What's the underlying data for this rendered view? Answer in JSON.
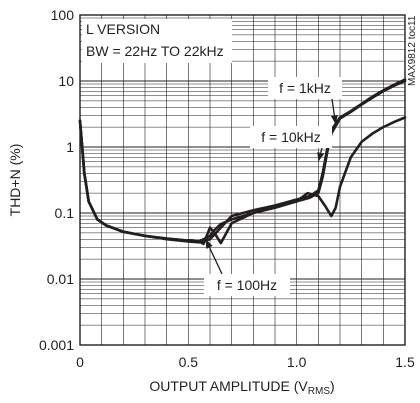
{
  "chart_data": {
    "type": "line",
    "xlabel": "OUTPUT AMPLITUDE (V",
    "xlabel_sub": "RMS",
    "xlabel_close": ")",
    "ylabel": "THD+N (%)",
    "xlim": [
      0,
      1.5
    ],
    "ylim": [
      0.001,
      100
    ],
    "yscale": "log",
    "grid": true,
    "x_ticks": [
      "0",
      "0.5",
      "1.0",
      "1.5"
    ],
    "x_tick_values": [
      0,
      0.5,
      1.0,
      1.5
    ],
    "y_ticks": [
      "0.001",
      "0.01",
      "0.1",
      "1",
      "10",
      "100"
    ],
    "y_tick_values": [
      0.001,
      0.01,
      0.1,
      1,
      10,
      100
    ],
    "text_box": [
      "L VERSION",
      "BW = 22Hz TO 22kHz"
    ],
    "figure_id": "MAX9812 toc11",
    "line_color": "#231f20",
    "series": [
      {
        "name": "f = 1kHz",
        "x": [
          0.0,
          0.02,
          0.04,
          0.08,
          0.12,
          0.2,
          0.3,
          0.4,
          0.5,
          0.55,
          0.6,
          0.65,
          0.7,
          0.8,
          0.9,
          1.0,
          1.06,
          1.1,
          1.12,
          1.14,
          1.16,
          1.2,
          1.25,
          1.3,
          1.35,
          1.4,
          1.45,
          1.5
        ],
        "y": [
          2.5,
          0.4,
          0.15,
          0.08,
          0.065,
          0.052,
          0.045,
          0.04,
          0.037,
          0.036,
          0.04,
          0.06,
          0.09,
          0.11,
          0.13,
          0.16,
          0.18,
          0.22,
          0.4,
          0.9,
          1.8,
          2.8,
          3.5,
          4.5,
          5.8,
          7.2,
          8.8,
          10.5
        ]
      },
      {
        "name": "f = 10kHz",
        "x": [
          0.0,
          0.02,
          0.04,
          0.08,
          0.12,
          0.2,
          0.3,
          0.4,
          0.5,
          0.55,
          0.6,
          0.62,
          0.65,
          0.7,
          0.8,
          0.9,
          1.0,
          1.05,
          1.1,
          1.13,
          1.16,
          1.18,
          1.2,
          1.25,
          1.3,
          1.35,
          1.4,
          1.45,
          1.5
        ],
        "y": [
          2.5,
          0.4,
          0.15,
          0.08,
          0.065,
          0.052,
          0.045,
          0.041,
          0.038,
          0.037,
          0.045,
          0.055,
          0.068,
          0.08,
          0.1,
          0.12,
          0.15,
          0.2,
          0.18,
          0.13,
          0.09,
          0.12,
          0.25,
          0.7,
          1.2,
          1.6,
          2.0,
          2.4,
          2.8
        ]
      },
      {
        "name": "f = 100Hz",
        "x": [
          0.0,
          0.02,
          0.04,
          0.08,
          0.12,
          0.2,
          0.3,
          0.4,
          0.5,
          0.55,
          0.57,
          0.6,
          0.62,
          0.65,
          0.7,
          0.8,
          0.9,
          1.0,
          1.06,
          1.1,
          1.12,
          1.14,
          1.16,
          1.2,
          1.25,
          1.3,
          1.35,
          1.4,
          1.45,
          1.5
        ],
        "y": [
          2.5,
          0.4,
          0.15,
          0.08,
          0.065,
          0.052,
          0.045,
          0.041,
          0.038,
          0.037,
          0.034,
          0.06,
          0.05,
          0.035,
          0.07,
          0.1,
          0.125,
          0.15,
          0.17,
          0.2,
          0.35,
          0.8,
          1.6,
          2.7,
          3.4,
          4.4,
          5.6,
          7.0,
          8.5,
          10.0
        ]
      }
    ],
    "annotations": [
      {
        "text": "f = 1kHz",
        "target_x": 1.18,
        "target_y": 2.2
      },
      {
        "text": "f = 10kHz",
        "target_x": 1.1,
        "target_y": 0.6
      },
      {
        "text": "f = 100Hz",
        "target_x": 0.58,
        "target_y": 0.04
      }
    ]
  }
}
